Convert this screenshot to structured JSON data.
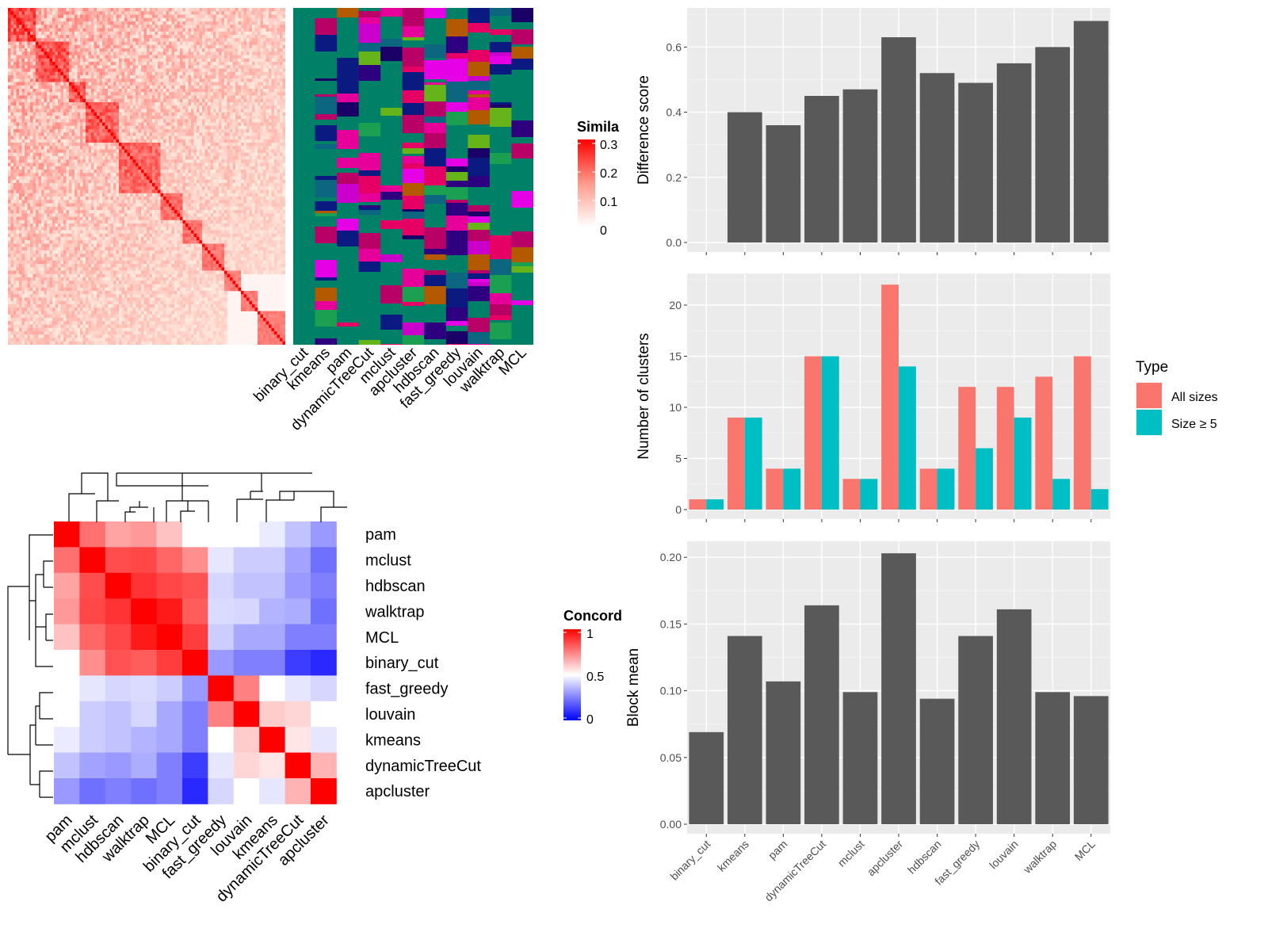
{
  "chart_data": [
    {
      "type": "heatmap",
      "name": "similarity-heatmap",
      "legend": {
        "title": "Simila",
        "ticks": [
          "0.3",
          "0.2",
          "0.1",
          "0"
        ]
      },
      "colors": {
        "low": "#ffffff",
        "high": "#ff0000"
      }
    },
    {
      "type": "heatmap",
      "name": "cluster-membership",
      "methods": [
        "binary_cut",
        "kmeans",
        "pam",
        "dynamicTreeCut",
        "mclust",
        "apcluster",
        "hdbscan",
        "fast_greedy",
        "louvain",
        "walktrap",
        "MCL"
      ]
    },
    {
      "type": "heatmap",
      "name": "concordance-heatmap",
      "legend": {
        "title": "Concord",
        "ticks": [
          "1",
          "0.5",
          "0"
        ]
      },
      "colors": {
        "low": "#0000ff",
        "mid": "#ffffff",
        "high": "#ff0000"
      },
      "rows": [
        "pam",
        "mclust",
        "hdbscan",
        "walktrap",
        "MCL",
        "binary_cut",
        "fast_greedy",
        "louvain",
        "kmeans",
        "dynamicTreeCut",
        "apcluster"
      ],
      "columns": [
        "pam",
        "mclust",
        "hdbscan",
        "walktrap",
        "MCL",
        "binary_cut",
        "fast_greedy",
        "louvain",
        "kmeans",
        "dynamicTreeCut",
        "apcluster"
      ],
      "values": [
        [
          1.0,
          0.78,
          0.68,
          0.7,
          0.62,
          0.5,
          0.5,
          0.5,
          0.46,
          0.38,
          0.3
        ],
        [
          0.78,
          1.0,
          0.85,
          0.86,
          0.8,
          0.72,
          0.45,
          0.4,
          0.4,
          0.32,
          0.22
        ],
        [
          0.68,
          0.85,
          1.0,
          0.9,
          0.86,
          0.84,
          0.42,
          0.38,
          0.38,
          0.3,
          0.25
        ],
        [
          0.7,
          0.86,
          0.9,
          1.0,
          0.95,
          0.82,
          0.43,
          0.42,
          0.35,
          0.34,
          0.22
        ],
        [
          0.62,
          0.8,
          0.86,
          0.95,
          1.0,
          0.88,
          0.4,
          0.33,
          0.33,
          0.25,
          0.25
        ],
        [
          0.5,
          0.72,
          0.84,
          0.82,
          0.88,
          1.0,
          0.3,
          0.25,
          0.25,
          0.12,
          0.08
        ],
        [
          0.5,
          0.45,
          0.42,
          0.43,
          0.4,
          0.3,
          1.0,
          0.75,
          0.5,
          0.45,
          0.42
        ],
        [
          0.5,
          0.4,
          0.38,
          0.42,
          0.33,
          0.25,
          0.75,
          1.0,
          0.6,
          0.58,
          0.5
        ],
        [
          0.46,
          0.4,
          0.38,
          0.35,
          0.33,
          0.25,
          0.5,
          0.6,
          1.0,
          0.55,
          0.45
        ],
        [
          0.38,
          0.32,
          0.3,
          0.34,
          0.25,
          0.12,
          0.45,
          0.58,
          0.55,
          1.0,
          0.65
        ],
        [
          0.3,
          0.22,
          0.25,
          0.22,
          0.25,
          0.08,
          0.42,
          0.5,
          0.45,
          0.65,
          1.0
        ]
      ]
    },
    {
      "type": "bar",
      "name": "difference-score",
      "ylabel": "Difference score",
      "categories": [
        "binary_cut",
        "kmeans",
        "pam",
        "dynamicTreeCut",
        "mclust",
        "apcluster",
        "hdbscan",
        "fast_greedy",
        "louvain",
        "walktrap",
        "MCL"
      ],
      "values": [
        0.0,
        0.4,
        0.36,
        0.45,
        0.47,
        0.63,
        0.52,
        0.49,
        0.55,
        0.6,
        0.68
      ],
      "ylim": [
        0,
        0.72
      ],
      "yticks": [
        "0.0",
        "0.2",
        "0.4",
        "0.6"
      ],
      "bar_color": "#595959"
    },
    {
      "type": "bar",
      "name": "number-of-clusters",
      "ylabel": "Number of clusters",
      "categories": [
        "binary_cut",
        "kmeans",
        "pam",
        "dynamicTreeCut",
        "mclust",
        "apcluster",
        "hdbscan",
        "fast_greedy",
        "louvain",
        "walktrap",
        "MCL"
      ],
      "series": [
        {
          "name": "All sizes",
          "color": "#f8766d",
          "values": [
            1,
            9,
            4,
            15,
            3,
            22,
            4,
            12,
            12,
            13,
            15
          ]
        },
        {
          "name": "Size ≥ 5",
          "color": "#00bfc4",
          "values": [
            1,
            9,
            4,
            15,
            3,
            14,
            4,
            6,
            9,
            3,
            2
          ]
        }
      ],
      "ylim": [
        0,
        23.1
      ],
      "yticks": [
        "0",
        "5",
        "10",
        "15",
        "20"
      ],
      "legend": {
        "title": "Type"
      }
    },
    {
      "type": "bar",
      "name": "block-mean",
      "ylabel": "Block mean",
      "categories": [
        "binary_cut",
        "kmeans",
        "pam",
        "dynamicTreeCut",
        "mclust",
        "apcluster",
        "hdbscan",
        "fast_greedy",
        "louvain",
        "walktrap",
        "MCL"
      ],
      "values": [
        0.069,
        0.141,
        0.107,
        0.164,
        0.099,
        0.203,
        0.094,
        0.141,
        0.161,
        0.099,
        0.096
      ],
      "ylim": [
        0,
        0.212
      ],
      "yticks": [
        "0.00",
        "0.05",
        "0.10",
        "0.15",
        "0.20"
      ],
      "bar_color": "#595959"
    }
  ]
}
